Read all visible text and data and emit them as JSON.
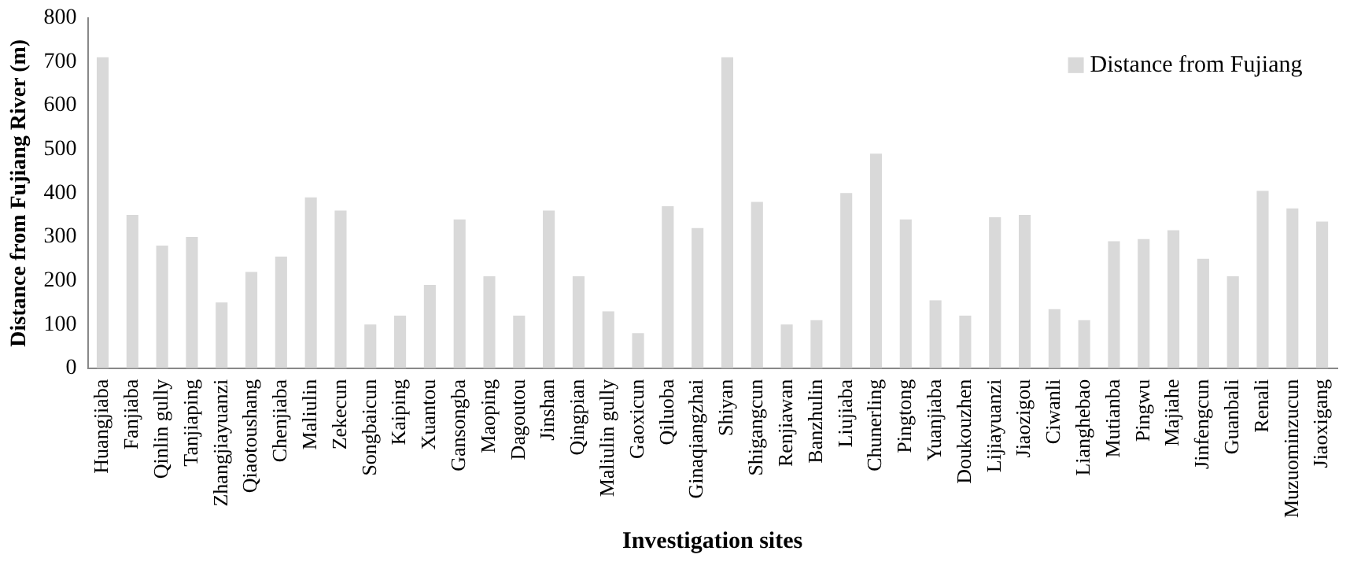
{
  "chart_data": {
    "type": "bar",
    "xlabel": "Investigation sites",
    "ylabel": "Distance from Fujiang River (m)",
    "categories": [
      "Huangjiaba",
      "Fanjiaba",
      "Qinlin gully",
      "Tanjiaping",
      "Zhangjiayuanzi",
      "Qiaotoushang",
      "Chenjiaba",
      "Maliulin",
      "Zekecun",
      "Songbaicun",
      "Kaiping",
      "Xuantou",
      "Gansongba",
      "Maoping",
      "Dagoutou",
      "Jinshan",
      "Qingpian",
      "Maliulin gully",
      "Gaoxicun",
      "Qiluoba",
      "Ginaqiangzhai",
      "Shiyan",
      "Shigangcun",
      "Renjiawan",
      "Banzhulin",
      "Liujiaba",
      "Chunerling",
      "Pingtong",
      "Yuanjiaba",
      "Doukouzhen",
      "Lijiayuanzi",
      "Jiaozigou",
      "Ciwanli",
      "Lianghebao",
      "Mutianba",
      "Pingwu",
      "Majiahe",
      "Jinfengcun",
      "Guanbali",
      "Renali",
      "Muzuominzucun",
      "Jiaoxigang"
    ],
    "series": [
      {
        "name": "Distance from Fujiang",
        "color": "#d9d9d9",
        "values": [
          710,
          350,
          280,
          300,
          150,
          220,
          255,
          390,
          360,
          100,
          120,
          190,
          340,
          210,
          120,
          360,
          210,
          130,
          80,
          370,
          320,
          710,
          380,
          100,
          110,
          400,
          490,
          340,
          155,
          120,
          345,
          350,
          135,
          110,
          290,
          295,
          315,
          250,
          210,
          405,
          365,
          335
        ]
      }
    ],
    "ylim": [
      0,
      800
    ],
    "yticks": [
      0,
      100,
      200,
      300,
      400,
      500,
      600,
      700,
      800
    ],
    "grid": false,
    "legend": "top right"
  }
}
